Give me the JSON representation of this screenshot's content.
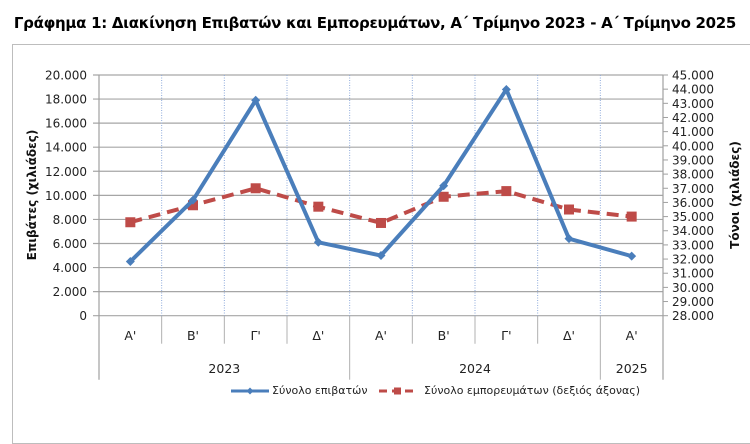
{
  "title": "Γράφημα 1: Διακίνηση Επιβατών και Εμπορευμάτων, Α΄ Τρίμηνο 2023 - Α΄ Τρίμηνο 2025",
  "colors": {
    "passengers": "#4a7ebb",
    "cargo": "#be4b48",
    "grid": "#a6a6a6",
    "vgrid": "#8eaadb"
  },
  "axes": {
    "left_title": "Επιβάτες (χιλιάδες)",
    "right_title": "Τόνοι (χιλιάδες)",
    "left_ticks": [
      "20.000",
      "18.000",
      "16.000",
      "14.000",
      "12.000",
      "10.000",
      "8.000",
      "6.000",
      "4.000",
      "2.000",
      "0"
    ],
    "right_ticks": [
      "45.000",
      "44.000",
      "43.000",
      "42.000",
      "41.000",
      "40.000",
      "39.000",
      "38.000",
      "37.000",
      "36.000",
      "35.000",
      "34.000",
      "33.000",
      "32.000",
      "31.000",
      "30.000",
      "29.000",
      "28.000"
    ]
  },
  "x_labels": {
    "quarters": [
      "Α'",
      "Β'",
      "Γ'",
      "Δ'",
      "Α'",
      "Β'",
      "Γ'",
      "Δ'",
      "Α'"
    ],
    "years": [
      "2023",
      "2024",
      "2025"
    ]
  },
  "legend": {
    "passengers": "Σύνολο επιβατών",
    "cargo": "Σύνολο εμπορευμάτων (δεξιός άξονας)"
  },
  "chart_data": {
    "type": "line",
    "title": "Γράφημα 1: Διακίνηση Επιβατών και Εμπορευμάτων, Α΄ Τρίμηνο 2023 - Α΄ Τρίμηνο 2025",
    "categories": [
      "Α' 2023",
      "Β' 2023",
      "Γ' 2023",
      "Δ' 2023",
      "Α' 2024",
      "Β' 2024",
      "Γ' 2024",
      "Δ' 2024",
      "Α' 2025"
    ],
    "series": [
      {
        "name": "Σύνολο επιβατών",
        "axis": "left",
        "values": [
          4500,
          9600,
          17900,
          6100,
          5000,
          10800,
          18800,
          6400,
          4950
        ]
      },
      {
        "name": "Σύνολο εμπορευμάτων (δεξιός άξονας)",
        "axis": "right",
        "values": [
          34600,
          35800,
          37000,
          35700,
          34550,
          36400,
          36800,
          35500,
          35000
        ]
      }
    ],
    "xlabel": "",
    "ylabel": "Επιβάτες (χιλιάδες)",
    "y2label": "Τόνοι (χιλιάδες)",
    "ylim": [
      0,
      20000
    ],
    "y2lim": [
      28000,
      45000
    ],
    "grid": true,
    "legend_position": "bottom"
  }
}
